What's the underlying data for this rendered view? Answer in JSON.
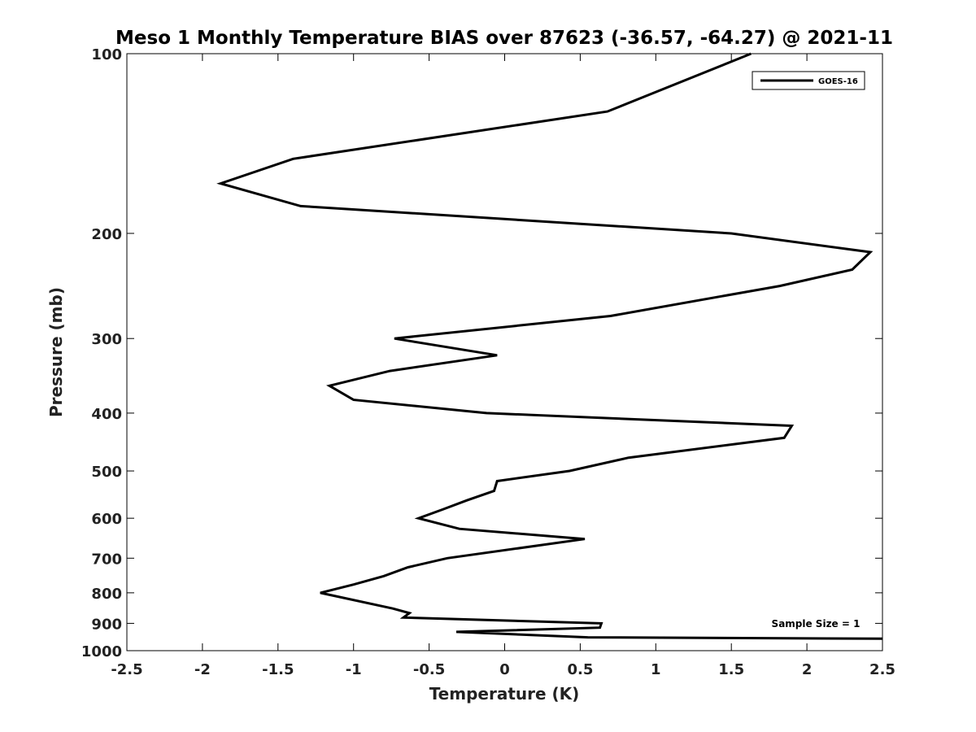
{
  "chart_data": {
    "type": "line",
    "title": "Meso 1 Monthly Temperature BIAS over 87623 (-36.57, -64.27) @ 2021-11",
    "xlabel": "Temperature (K)",
    "ylabel": "Pressure (mb)",
    "xlim": [
      -2.5,
      2.5
    ],
    "ylim": [
      100,
      1000
    ],
    "y_scale": "log",
    "y_reversed": true,
    "x_ticks": [
      "-2.5",
      "-2",
      "-1.5",
      "-1",
      "-0.5",
      "0",
      "0.5",
      "1",
      "1.5",
      "2",
      "2.5"
    ],
    "y_ticks": [
      "100",
      "200",
      "300",
      "400",
      "500",
      "600",
      "700",
      "800",
      "900",
      "1000"
    ],
    "grid": false,
    "legend": {
      "position": "top-right",
      "entries": [
        "GOES-16"
      ]
    },
    "annotation": "Sample Size = 1",
    "series": [
      {
        "name": "GOES-16",
        "color": "#000000",
        "points": [
          {
            "x": 1.63,
            "y": 100
          },
          {
            "x": 0.68,
            "y": 125
          },
          {
            "x": -1.4,
            "y": 150
          },
          {
            "x": -1.88,
            "y": 165
          },
          {
            "x": -1.35,
            "y": 180
          },
          {
            "x": 1.5,
            "y": 200
          },
          {
            "x": 2.42,
            "y": 215
          },
          {
            "x": 2.3,
            "y": 230
          },
          {
            "x": 1.82,
            "y": 245
          },
          {
            "x": 0.7,
            "y": 275
          },
          {
            "x": -0.73,
            "y": 300
          },
          {
            "x": -0.05,
            "y": 320
          },
          {
            "x": -0.76,
            "y": 340
          },
          {
            "x": -1.16,
            "y": 360
          },
          {
            "x": -1.0,
            "y": 380
          },
          {
            "x": -0.12,
            "y": 400
          },
          {
            "x": 1.9,
            "y": 420
          },
          {
            "x": 1.85,
            "y": 440
          },
          {
            "x": 0.82,
            "y": 475
          },
          {
            "x": 0.43,
            "y": 500
          },
          {
            "x": -0.05,
            "y": 520
          },
          {
            "x": -0.07,
            "y": 540
          },
          {
            "x": -0.25,
            "y": 560
          },
          {
            "x": -0.41,
            "y": 580
          },
          {
            "x": -0.57,
            "y": 600
          },
          {
            "x": -0.3,
            "y": 625
          },
          {
            "x": 0.53,
            "y": 650
          },
          {
            "x": -0.38,
            "y": 700
          },
          {
            "x": -0.64,
            "y": 725
          },
          {
            "x": -0.8,
            "y": 750
          },
          {
            "x": -1.0,
            "y": 775
          },
          {
            "x": -1.22,
            "y": 800
          },
          {
            "x": -0.74,
            "y": 850
          },
          {
            "x": -0.63,
            "y": 865
          },
          {
            "x": -0.67,
            "y": 880
          },
          {
            "x": 0.64,
            "y": 900
          },
          {
            "x": 0.63,
            "y": 915
          },
          {
            "x": -0.32,
            "y": 930
          },
          {
            "x": 0.55,
            "y": 950
          },
          {
            "x": 2.5,
            "y": 955
          }
        ]
      }
    ]
  }
}
